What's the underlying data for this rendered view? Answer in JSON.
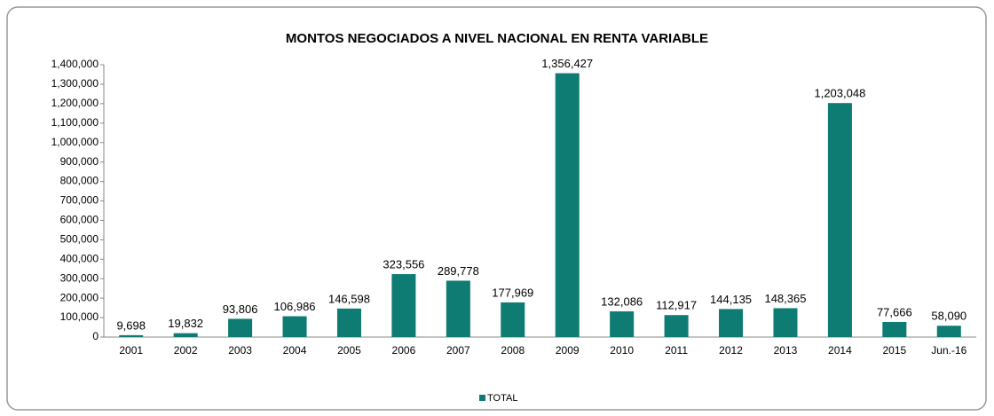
{
  "chart_data": {
    "type": "bar",
    "title": "MONTOS NEGOCIADOS A NIVEL NACIONAL EN RENTA VARIABLE",
    "categories": [
      "2001",
      "2002",
      "2003",
      "2004",
      "2005",
      "2006",
      "2007",
      "2008",
      "2009",
      "2010",
      "2011",
      "2012",
      "2013",
      "2014",
      "2015",
      "Jun.-16"
    ],
    "series": [
      {
        "name": "TOTAL",
        "color": "#0e7c72",
        "values": [
          9698,
          19832,
          93806,
          106986,
          146598,
          323556,
          289778,
          177969,
          1356427,
          132086,
          112917,
          144135,
          148365,
          1203048,
          77666,
          58090
        ],
        "value_labels": [
          "9,698",
          "19,832",
          "93,806",
          "106,986",
          "146,598",
          "323,556",
          "289,778",
          "177,969",
          "1,356,427",
          "132,086",
          "112,917",
          "144,135",
          "148,365",
          "1,203,048",
          "77,666",
          "58,090"
        ]
      }
    ],
    "ylim": [
      0,
      1400000
    ],
    "yticks": [
      0,
      {
        "value": 100000,
        "label": "100,000"
      },
      {
        "value": 200000,
        "label": "200,000"
      },
      {
        "value": 300000,
        "label": "300,000"
      },
      {
        "value": 400000,
        "label": "400,000"
      },
      {
        "value": 500000,
        "label": "500,000"
      },
      {
        "value": 600000,
        "label": "600,000"
      },
      {
        "value": 700000,
        "label": "700,000"
      },
      {
        "value": 800000,
        "label": "800,000"
      },
      {
        "value": 900000,
        "label": "900,000"
      },
      {
        "value": 1000000,
        "label": "1,000,000"
      },
      {
        "value": 1100000,
        "label": "1,100,000"
      },
      {
        "value": 1200000,
        "label": "1,200,000"
      },
      {
        "value": 1300000,
        "label": "1,300,000"
      },
      {
        "value": 1400000,
        "label": "1,400,000"
      }
    ],
    "legend": "bottom"
  }
}
